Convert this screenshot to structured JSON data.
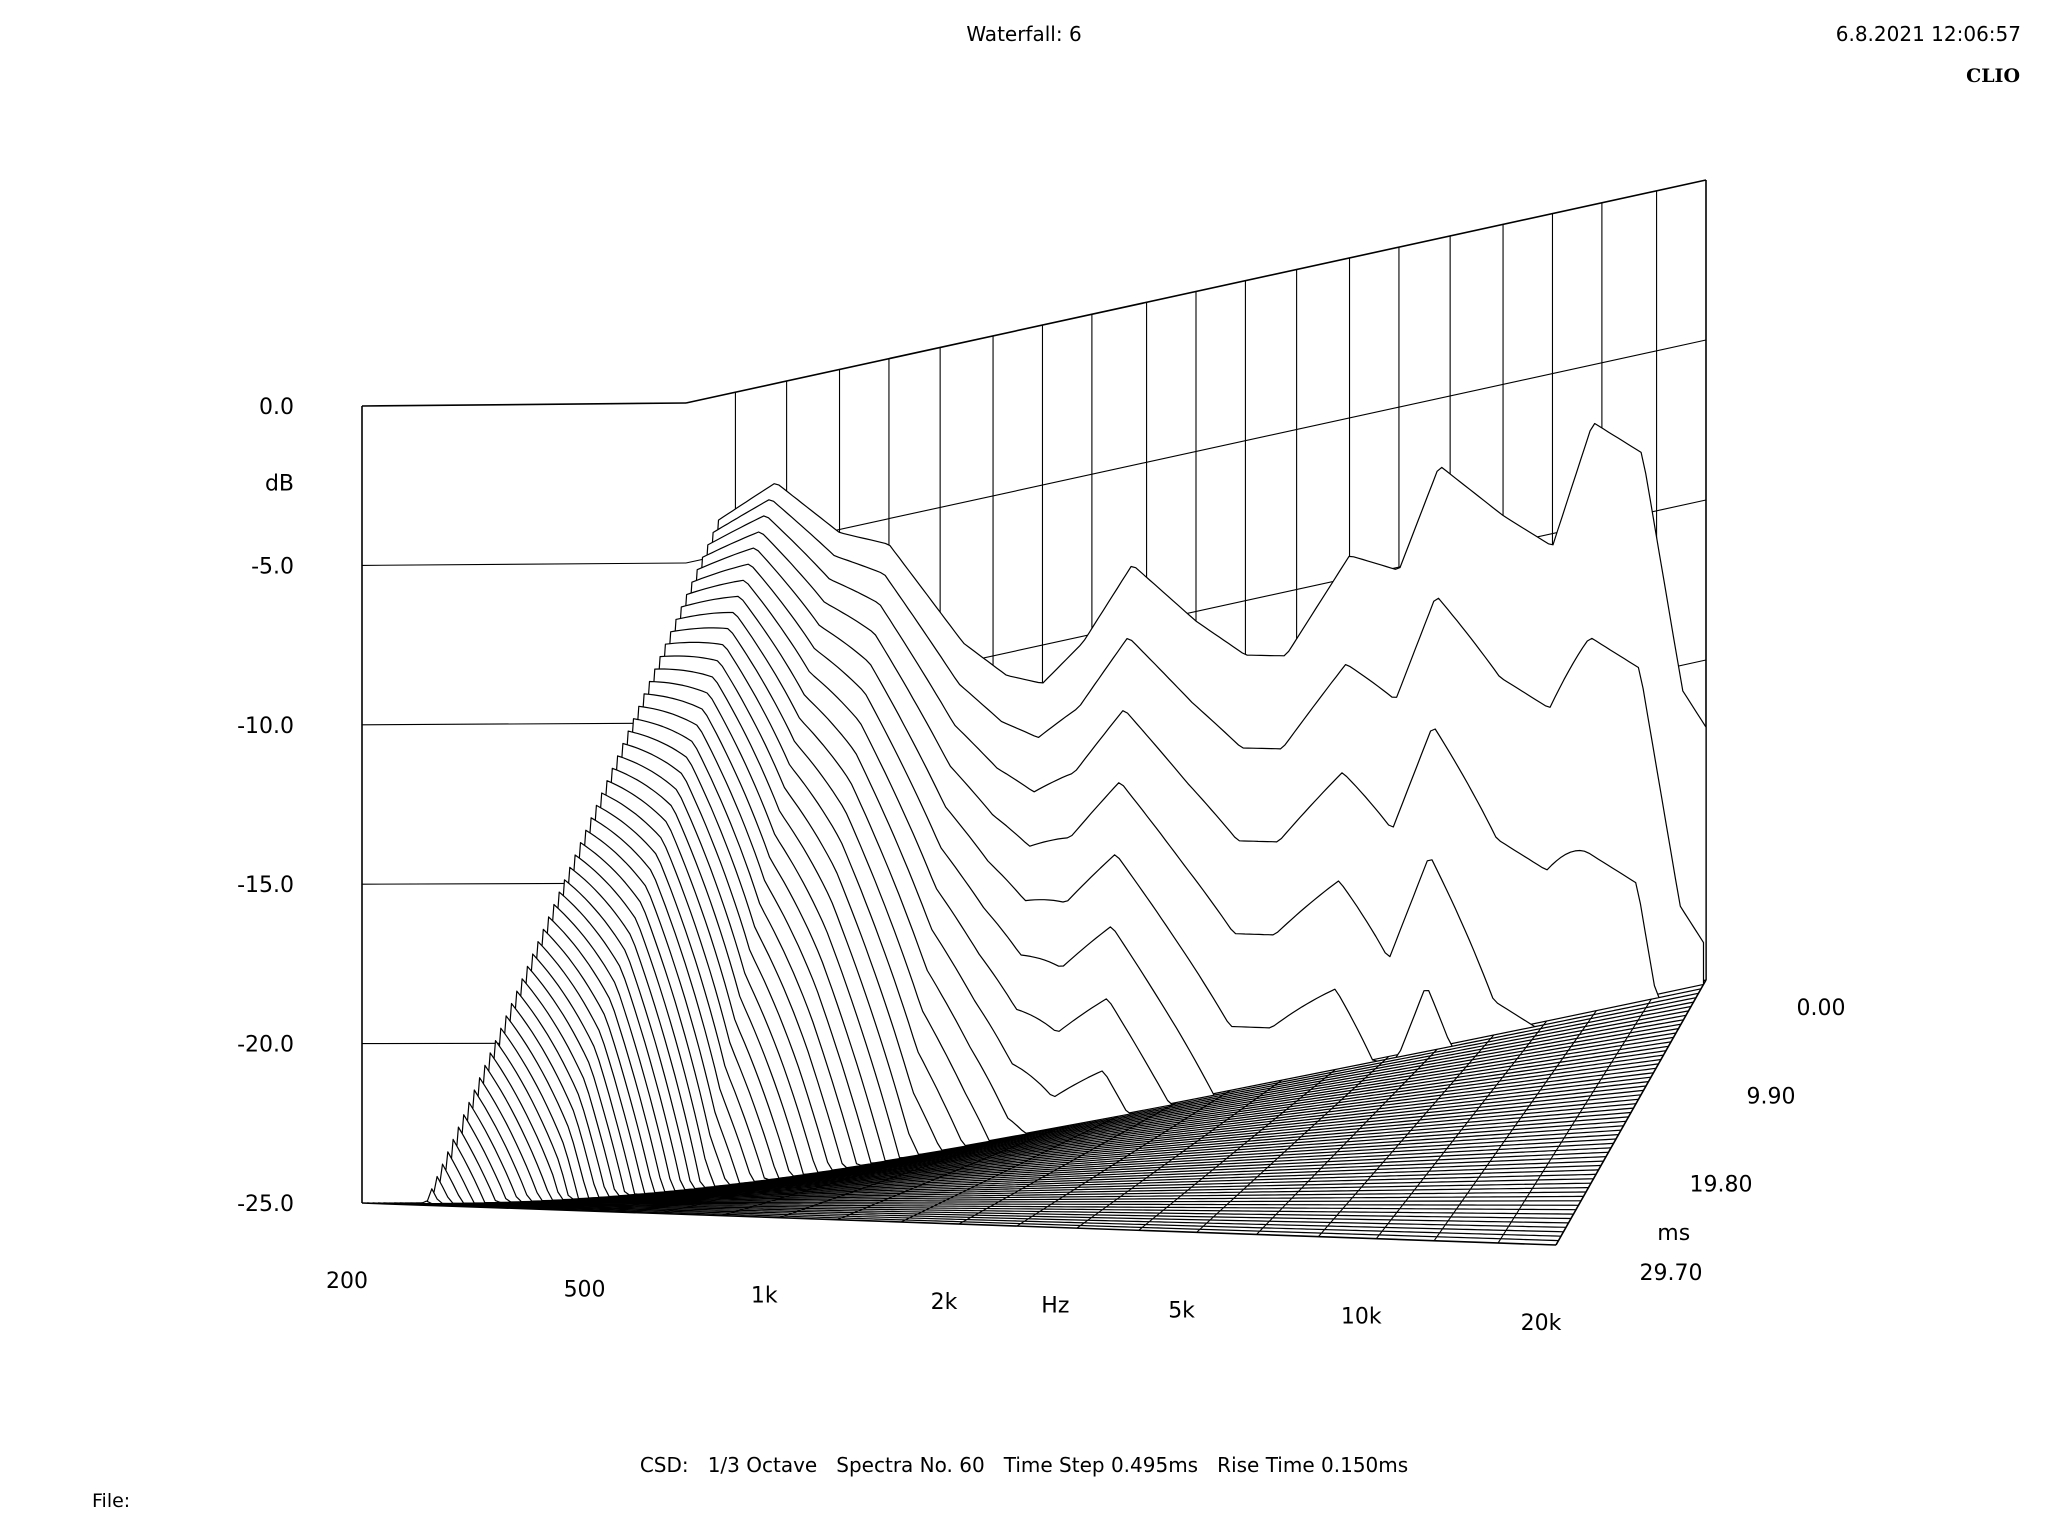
{
  "header": {
    "title": "Waterfall: 6",
    "datetime": "6.8.2021 12:06:57",
    "brand": "CLIO"
  },
  "footer": {
    "settings": "CSD:   1/3 Octave   Spectra No. 60   Time Step 0.495ms   Rise Time 0.150ms",
    "file_label": "File:"
  },
  "chart_data": {
    "type": "waterfall",
    "title": "Waterfall: 6",
    "zlabel": "dB",
    "zlim": [
      -25,
      0
    ],
    "z_ticks": [
      "0.0",
      "-5.0",
      "-10.0",
      "-15.0",
      "-20.0",
      "-25.0"
    ],
    "xlabel": "Hz",
    "x_scale": "log",
    "xlim": [
      200,
      20000
    ],
    "x_ticks": [
      {
        "value": 200,
        "label": "200"
      },
      {
        "value": 500,
        "label": "500"
      },
      {
        "value": 1000,
        "label": "1k"
      },
      {
        "value": 2000,
        "label": "2k"
      },
      {
        "value": 5000,
        "label": "5k"
      },
      {
        "value": 10000,
        "label": "10k"
      },
      {
        "value": 20000,
        "label": "20k"
      }
    ],
    "ylabel": "ms",
    "ylim": [
      0,
      29.7
    ],
    "y_ticks": [
      "0.00",
      "9.90",
      "19.80",
      "29.70"
    ],
    "spectra_count": 60,
    "time_step_ms": 0.495,
    "rise_time_ms": 0.15,
    "smoothing": "1/3 Octave",
    "grid": true,
    "envelope_db": [
      {
        "hz": 200,
        "t0": -25.0,
        "decay_ms": 26.0
      },
      {
        "hz": 230,
        "t0": -3.9,
        "decay_ms": 26.0
      },
      {
        "hz": 300,
        "t0": -3.1,
        "decay_ms": 20.0
      },
      {
        "hz": 400,
        "t0": -5.1,
        "decay_ms": 14.0
      },
      {
        "hz": 500,
        "t0": -5.8,
        "decay_ms": 11.0
      },
      {
        "hz": 700,
        "t0": -9.4,
        "decay_ms": 8.0
      },
      {
        "hz": 850,
        "t0": -10.7,
        "decay_ms": 7.0
      },
      {
        "hz": 1000,
        "t0": -11.2,
        "decay_ms": 6.0
      },
      {
        "hz": 1200,
        "t0": -10.2,
        "decay_ms": 5.0
      },
      {
        "hz": 1500,
        "t0": -8.1,
        "decay_ms": 4.5
      },
      {
        "hz": 2000,
        "t0": -10.3,
        "decay_ms": 4.0
      },
      {
        "hz": 2500,
        "t0": -11.7,
        "decay_ms": 3.5
      },
      {
        "hz": 3000,
        "t0": -12.0,
        "decay_ms": 3.5
      },
      {
        "hz": 4000,
        "t0": -9.3,
        "decay_ms": 3.0
      },
      {
        "hz": 5000,
        "t0": -10.1,
        "decay_ms": 2.5
      },
      {
        "hz": 6000,
        "t0": -7.1,
        "decay_ms": 2.5
      },
      {
        "hz": 8000,
        "t0": -9.1,
        "decay_ms": 2.0
      },
      {
        "hz": 10000,
        "t0": -10.4,
        "decay_ms": 2.0
      },
      {
        "hz": 12000,
        "t0": -6.8,
        "decay_ms": 1.5
      },
      {
        "hz": 15000,
        "t0": -8.1,
        "decay_ms": 1.5
      },
      {
        "hz": 18000,
        "t0": -15.8,
        "decay_ms": 1.5
      },
      {
        "hz": 20000,
        "t0": -17.1,
        "decay_ms": 1.5
      }
    ]
  }
}
